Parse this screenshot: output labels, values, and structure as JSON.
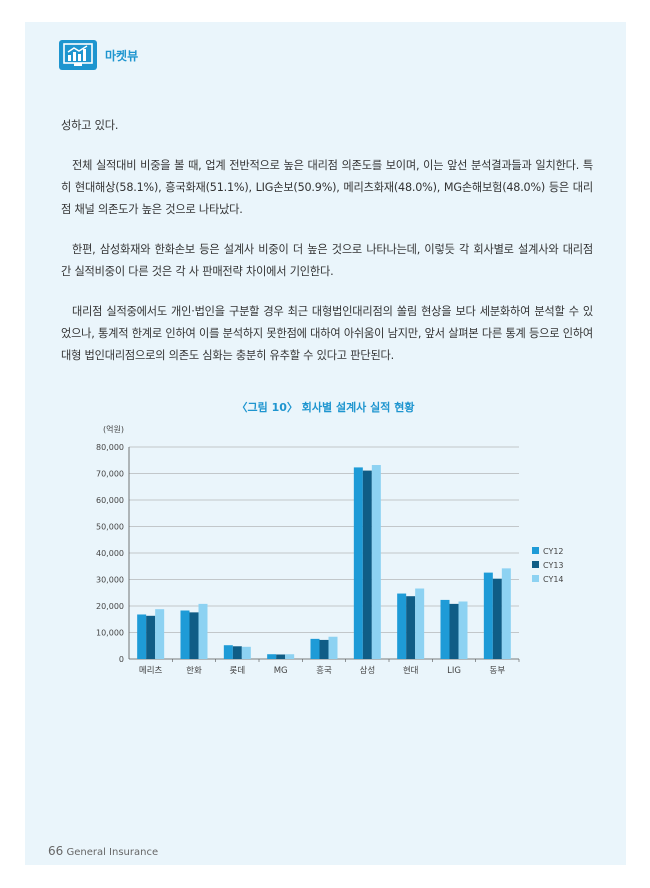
{
  "header": {
    "section": "마켓뷰",
    "icon": "bar-chart-monitor-icon"
  },
  "paragraphs": [
    "성하고 있다.",
    "전체 실적대비 비중을 볼 때, 업계 전반적으로 높은 대리점 의존도를 보이며, 이는 앞선 분석결과들과 일치한다. 특히 현대해상(58.1%), 흥국화재(51.1%), LIG손보(50.9%), 메리츠화재(48.0%), MG손해보험(48.0%) 등은 대리점 채널 의존도가 높은 것으로 나타났다.",
    "한편, 삼성화재와 한화손보 등은 설계사 비중이 더 높은 것으로 나타나는데, 이렇듯 각 회사별로 설계사와 대리점 간 실적비중이 다른 것은 각 사 판매전략 차이에서 기인한다.",
    "대리점 실적중에서도 개인·법인을 구분할 경우 최근 대형법인대리점의 쏠림 현상을 보다 세분화하여 분석할 수 있었으나, 통계적 한계로 인하여 이를 분석하지 못한점에 대하여 아쉬움이 남지만, 앞서 살펴본 다른 통계 등으로 인하여 대형 법인대리점으로의 의존도 심화는 충분히 유추할 수 있다고 판단된다."
  ],
  "chart_data": {
    "type": "bar",
    "title": "〈그림 10〉 회사별 설계사 실적 현황",
    "ylabel": "(억원)",
    "ylim": [
      0,
      80000
    ],
    "yticks": [
      "0",
      "10,000",
      "20,000",
      "30,000",
      "40,000",
      "50,000",
      "60,000",
      "70,000",
      "80,000"
    ],
    "grid": true,
    "legend_position": "right",
    "categories": [
      "메리츠",
      "한화",
      "롯데",
      "MG",
      "흥국",
      "삼성",
      "현대",
      "LIG",
      "동부"
    ],
    "series": [
      {
        "name": "CY12",
        "color": "#1e9bd7",
        "values": [
          16800,
          18300,
          5200,
          1800,
          7600,
          72300,
          24700,
          22300,
          32600
        ]
      },
      {
        "name": "CY13",
        "color": "#0f5d86",
        "values": [
          16300,
          17600,
          4800,
          1700,
          7200,
          71100,
          23700,
          20800,
          30300
        ]
      },
      {
        "name": "CY14",
        "color": "#8dd2f2",
        "values": [
          18800,
          20800,
          4600,
          1800,
          8400,
          73200,
          26600,
          21700,
          34200
        ]
      }
    ]
  },
  "footer": {
    "page_number": "66",
    "publication": "General Insurance"
  }
}
